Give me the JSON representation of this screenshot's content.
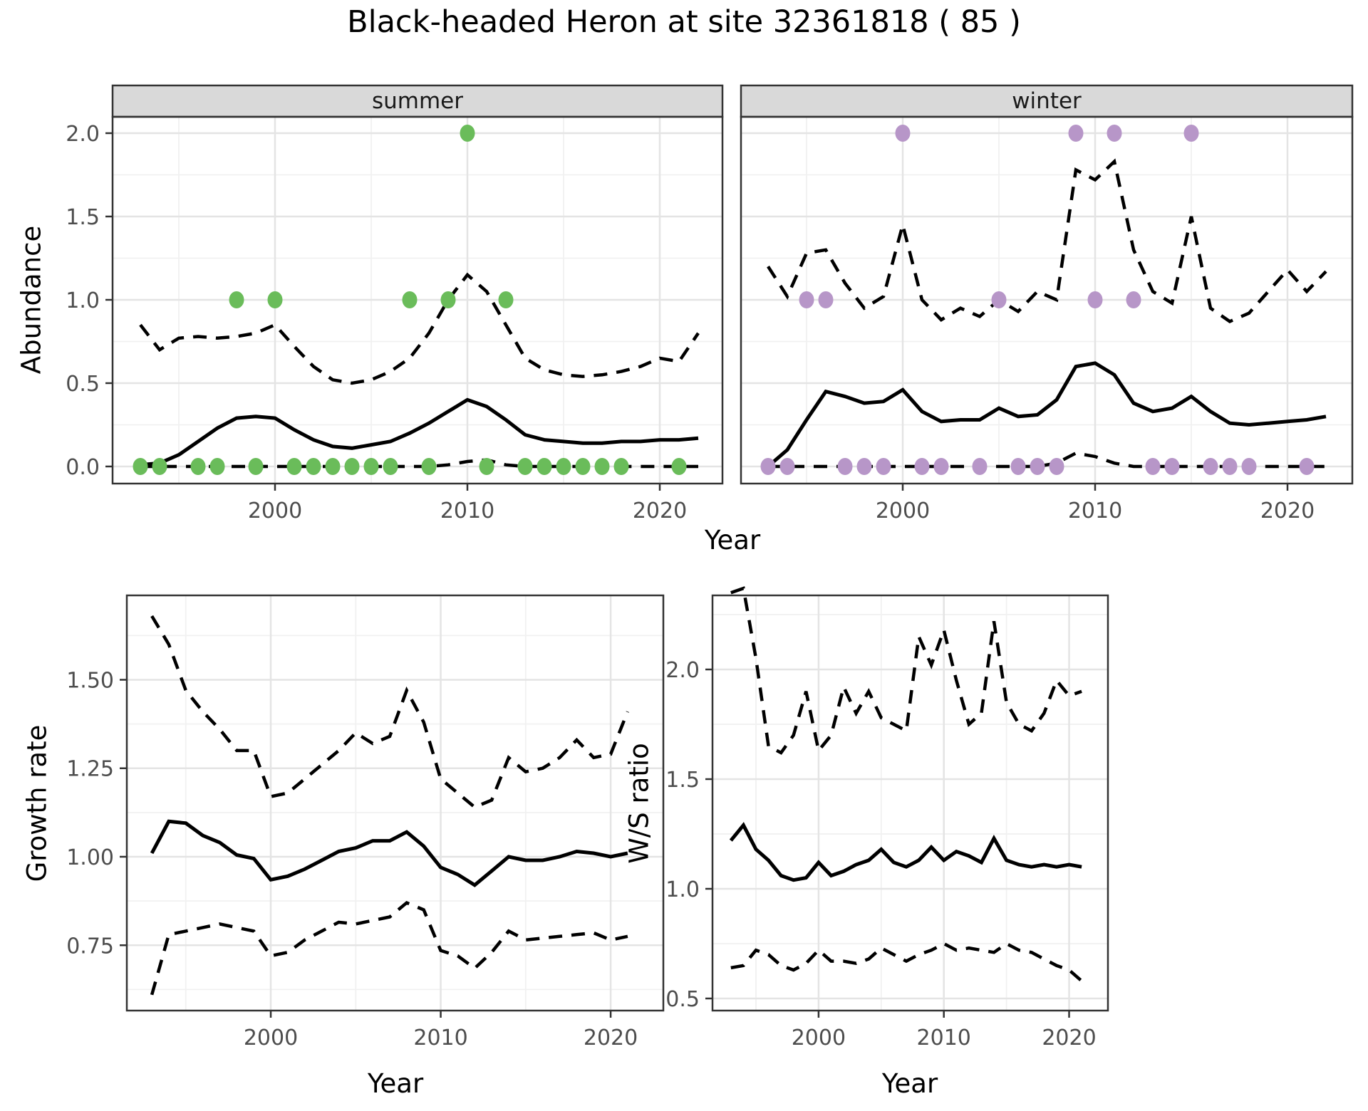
{
  "title": "Black-headed Heron at site 32361818 ( 85 )",
  "colors": {
    "summer_points": "#6abc5a",
    "winter_points": "#b796c8",
    "line": "#000000",
    "strip_bg": "#d9d9d9",
    "strip_border": "#333333",
    "panel_border": "#333333",
    "grid_major": "#e4e4e4",
    "grid_minor": "#f1f1f1",
    "axis_text": "#4d4d4d"
  },
  "chart_data": {
    "abundance": {
      "type": "line+scatter",
      "ylabel": "Abundance",
      "xlabel": "Year",
      "x": {
        "ticks": [
          2000,
          2010,
          2020
        ],
        "tick_labels": [
          "2000",
          "2010",
          "2020"
        ],
        "minor": [
          1995,
          2005,
          2015
        ],
        "range": [
          1991.6,
          2023.3
        ]
      },
      "y": {
        "ticks": [
          0,
          0.5,
          1,
          1.5,
          2
        ],
        "tick_labels": [
          "0.0",
          "0.5",
          "1.0",
          "1.5",
          "2.0"
        ],
        "minor": [
          0.25,
          0.75,
          1.25,
          1.75
        ],
        "range": [
          -0.1,
          2.1
        ]
      },
      "years": [
        1993,
        1994,
        1995,
        1996,
        1997,
        1998,
        1999,
        2000,
        2001,
        2002,
        2003,
        2004,
        2005,
        2006,
        2007,
        2008,
        2009,
        2010,
        2011,
        2012,
        2013,
        2014,
        2015,
        2016,
        2017,
        2018,
        2019,
        2020,
        2021,
        2022
      ],
      "facets": [
        {
          "label": "summer",
          "point_color_key": "summer_points",
          "points": [
            [
              1993,
              0
            ],
            [
              1994,
              0
            ],
            [
              1996,
              0
            ],
            [
              1997,
              0
            ],
            [
              1998,
              1
            ],
            [
              1999,
              0
            ],
            [
              2000,
              1
            ],
            [
              2001,
              0
            ],
            [
              2002,
              0
            ],
            [
              2003,
              0
            ],
            [
              2004,
              0
            ],
            [
              2005,
              0
            ],
            [
              2006,
              0
            ],
            [
              2007,
              1
            ],
            [
              2008,
              0
            ],
            [
              2009,
              1
            ],
            [
              2010,
              2
            ],
            [
              2011,
              0
            ],
            [
              2012,
              1
            ],
            [
              2013,
              0
            ],
            [
              2014,
              0
            ],
            [
              2015,
              0
            ],
            [
              2016,
              0
            ],
            [
              2017,
              0
            ],
            [
              2018,
              0
            ],
            [
              2021,
              0
            ]
          ],
          "series": {
            "mean": [
              0.01,
              0.02,
              0.07,
              0.15,
              0.23,
              0.29,
              0.3,
              0.29,
              0.22,
              0.16,
              0.12,
              0.11,
              0.13,
              0.15,
              0.2,
              0.26,
              0.33,
              0.4,
              0.36,
              0.28,
              0.19,
              0.16,
              0.15,
              0.14,
              0.14,
              0.15,
              0.15,
              0.16,
              0.16,
              0.17
            ],
            "upper": [
              0.85,
              0.7,
              0.77,
              0.78,
              0.77,
              0.78,
              0.8,
              0.85,
              0.72,
              0.6,
              0.52,
              0.5,
              0.52,
              0.57,
              0.65,
              0.8,
              1.0,
              1.15,
              1.05,
              0.85,
              0.65,
              0.58,
              0.55,
              0.54,
              0.55,
              0.57,
              0.6,
              0.65,
              0.63,
              0.8
            ],
            "lower": [
              0,
              0,
              0,
              0,
              0,
              0,
              0,
              0,
              0,
              0,
              0,
              0,
              0,
              0,
              0,
              0,
              0.01,
              0.03,
              0.04,
              0.01,
              0,
              0,
              0,
              0,
              0,
              0,
              0,
              0,
              0,
              0
            ]
          }
        },
        {
          "label": "winter",
          "point_color_key": "winter_points",
          "points": [
            [
              1993,
              0
            ],
            [
              1994,
              0
            ],
            [
              1995,
              1
            ],
            [
              1996,
              1
            ],
            [
              1997,
              0
            ],
            [
              1998,
              0
            ],
            [
              1999,
              0
            ],
            [
              2000,
              2
            ],
            [
              2001,
              0
            ],
            [
              2002,
              0
            ],
            [
              2004,
              0
            ],
            [
              2005,
              1
            ],
            [
              2006,
              0
            ],
            [
              2007,
              0
            ],
            [
              2008,
              0
            ],
            [
              2009,
              2
            ],
            [
              2010,
              1
            ],
            [
              2011,
              2
            ],
            [
              2012,
              1
            ],
            [
              2013,
              0
            ],
            [
              2014,
              0
            ],
            [
              2015,
              2
            ],
            [
              2016,
              0
            ],
            [
              2017,
              0
            ],
            [
              2018,
              0
            ],
            [
              2021,
              0
            ]
          ],
          "series": {
            "mean": [
              0.0,
              0.1,
              0.28,
              0.45,
              0.42,
              0.38,
              0.39,
              0.46,
              0.33,
              0.27,
              0.28,
              0.28,
              0.35,
              0.3,
              0.31,
              0.4,
              0.6,
              0.62,
              0.55,
              0.38,
              0.33,
              0.35,
              0.42,
              0.33,
              0.26,
              0.25,
              0.26,
              0.27,
              0.28,
              0.3
            ],
            "upper": [
              1.2,
              1.02,
              1.28,
              1.3,
              1.1,
              0.95,
              1.02,
              1.45,
              1.0,
              0.88,
              0.95,
              0.9,
              1.0,
              0.93,
              1.05,
              1.0,
              1.78,
              1.72,
              1.83,
              1.3,
              1.05,
              0.98,
              1.5,
              0.95,
              0.87,
              0.92,
              1.05,
              1.18,
              1.05,
              1.17
            ],
            "lower": [
              0,
              0,
              0,
              0,
              0,
              0,
              0,
              0,
              0,
              0,
              0,
              0,
              0,
              0,
              0,
              0.02,
              0.08,
              0.06,
              0.02,
              0,
              0,
              0,
              0,
              0,
              0,
              0,
              0,
              0,
              0,
              0
            ]
          }
        }
      ]
    },
    "growth_rate": {
      "type": "line",
      "ylabel": "Growth rate",
      "xlabel": "Year",
      "x": {
        "ticks": [
          2000,
          2010,
          2020
        ],
        "tick_labels": [
          "2000",
          "2010",
          "2020"
        ],
        "minor": [
          1995,
          2005,
          2015
        ],
        "range": [
          1991.5,
          2023.1
        ]
      },
      "y": {
        "ticks": [
          0.75,
          1.0,
          1.25,
          1.5
        ],
        "tick_labels": [
          "0.75",
          "1.00",
          "1.25",
          "1.50"
        ],
        "minor": [
          0.625,
          0.875,
          1.125,
          1.375,
          1.625
        ],
        "range": [
          0.57,
          1.74
        ]
      },
      "years": [
        1993,
        1994,
        1995,
        1996,
        1997,
        1998,
        1999,
        2000,
        2001,
        2002,
        2003,
        2004,
        2005,
        2006,
        2007,
        2008,
        2009,
        2010,
        2011,
        2012,
        2013,
        2014,
        2015,
        2016,
        2017,
        2018,
        2019,
        2020,
        2021
      ],
      "series": {
        "mean": [
          1.01,
          1.1,
          1.095,
          1.06,
          1.04,
          1.005,
          0.995,
          0.935,
          0.945,
          0.965,
          0.99,
          1.015,
          1.025,
          1.045,
          1.045,
          1.07,
          1.03,
          0.97,
          0.95,
          0.92,
          0.96,
          1.0,
          0.99,
          0.99,
          1.0,
          1.015,
          1.01,
          1.0,
          1.01
        ],
        "upper": [
          1.68,
          1.6,
          1.47,
          1.41,
          1.36,
          1.3,
          1.3,
          1.17,
          1.18,
          1.22,
          1.26,
          1.3,
          1.35,
          1.32,
          1.34,
          1.47,
          1.38,
          1.22,
          1.18,
          1.14,
          1.16,
          1.28,
          1.24,
          1.25,
          1.28,
          1.33,
          1.28,
          1.29,
          1.41
        ],
        "lower": [
          0.61,
          0.78,
          0.79,
          0.8,
          0.81,
          0.8,
          0.79,
          0.72,
          0.73,
          0.765,
          0.79,
          0.815,
          0.81,
          0.82,
          0.83,
          0.87,
          0.85,
          0.735,
          0.72,
          0.685,
          0.73,
          0.79,
          0.765,
          0.77,
          0.775,
          0.78,
          0.785,
          0.765,
          0.775
        ]
      }
    },
    "ws_ratio": {
      "type": "line",
      "ylabel": "W/S ratio",
      "xlabel": "Year",
      "x": {
        "ticks": [
          2000,
          2010,
          2020
        ],
        "tick_labels": [
          "2000",
          "2010",
          "2020"
        ],
        "minor": [
          1995,
          2005,
          2015
        ],
        "range": [
          1991.5,
          2023.1
        ]
      },
      "y": {
        "ticks": [
          0.5,
          1.0,
          1.5,
          2.0
        ],
        "tick_labels": [
          "0.5",
          "1.0",
          "1.5",
          "2.0"
        ],
        "minor": [
          0.75,
          1.25,
          1.75,
          2.25
        ],
        "range": [
          0.44,
          2.34
        ]
      },
      "years": [
        1993,
        1994,
        1995,
        1996,
        1997,
        1998,
        1999,
        2000,
        2001,
        2002,
        2003,
        2004,
        2005,
        2006,
        2007,
        2008,
        2009,
        2010,
        2011,
        2012,
        2013,
        2014,
        2015,
        2016,
        2017,
        2018,
        2019,
        2020,
        2021
      ],
      "series": {
        "mean": [
          1.22,
          1.29,
          1.18,
          1.13,
          1.06,
          1.04,
          1.05,
          1.12,
          1.06,
          1.08,
          1.11,
          1.13,
          1.18,
          1.12,
          1.1,
          1.13,
          1.19,
          1.13,
          1.17,
          1.15,
          1.12,
          1.23,
          1.13,
          1.11,
          1.1,
          1.11,
          1.1,
          1.11,
          1.1
        ],
        "upper": [
          2.35,
          2.37,
          2.05,
          1.65,
          1.62,
          1.7,
          1.9,
          1.63,
          1.7,
          1.92,
          1.8,
          1.9,
          1.78,
          1.75,
          1.72,
          2.15,
          2.02,
          2.18,
          1.95,
          1.75,
          1.8,
          2.22,
          1.85,
          1.75,
          1.72,
          1.8,
          1.95,
          1.88,
          1.9
        ],
        "lower": [
          0.64,
          0.65,
          0.72,
          0.7,
          0.65,
          0.63,
          0.66,
          0.72,
          0.67,
          0.67,
          0.66,
          0.68,
          0.73,
          0.7,
          0.67,
          0.7,
          0.72,
          0.75,
          0.72,
          0.73,
          0.72,
          0.71,
          0.75,
          0.72,
          0.71,
          0.68,
          0.65,
          0.63,
          0.58
        ]
      }
    }
  }
}
